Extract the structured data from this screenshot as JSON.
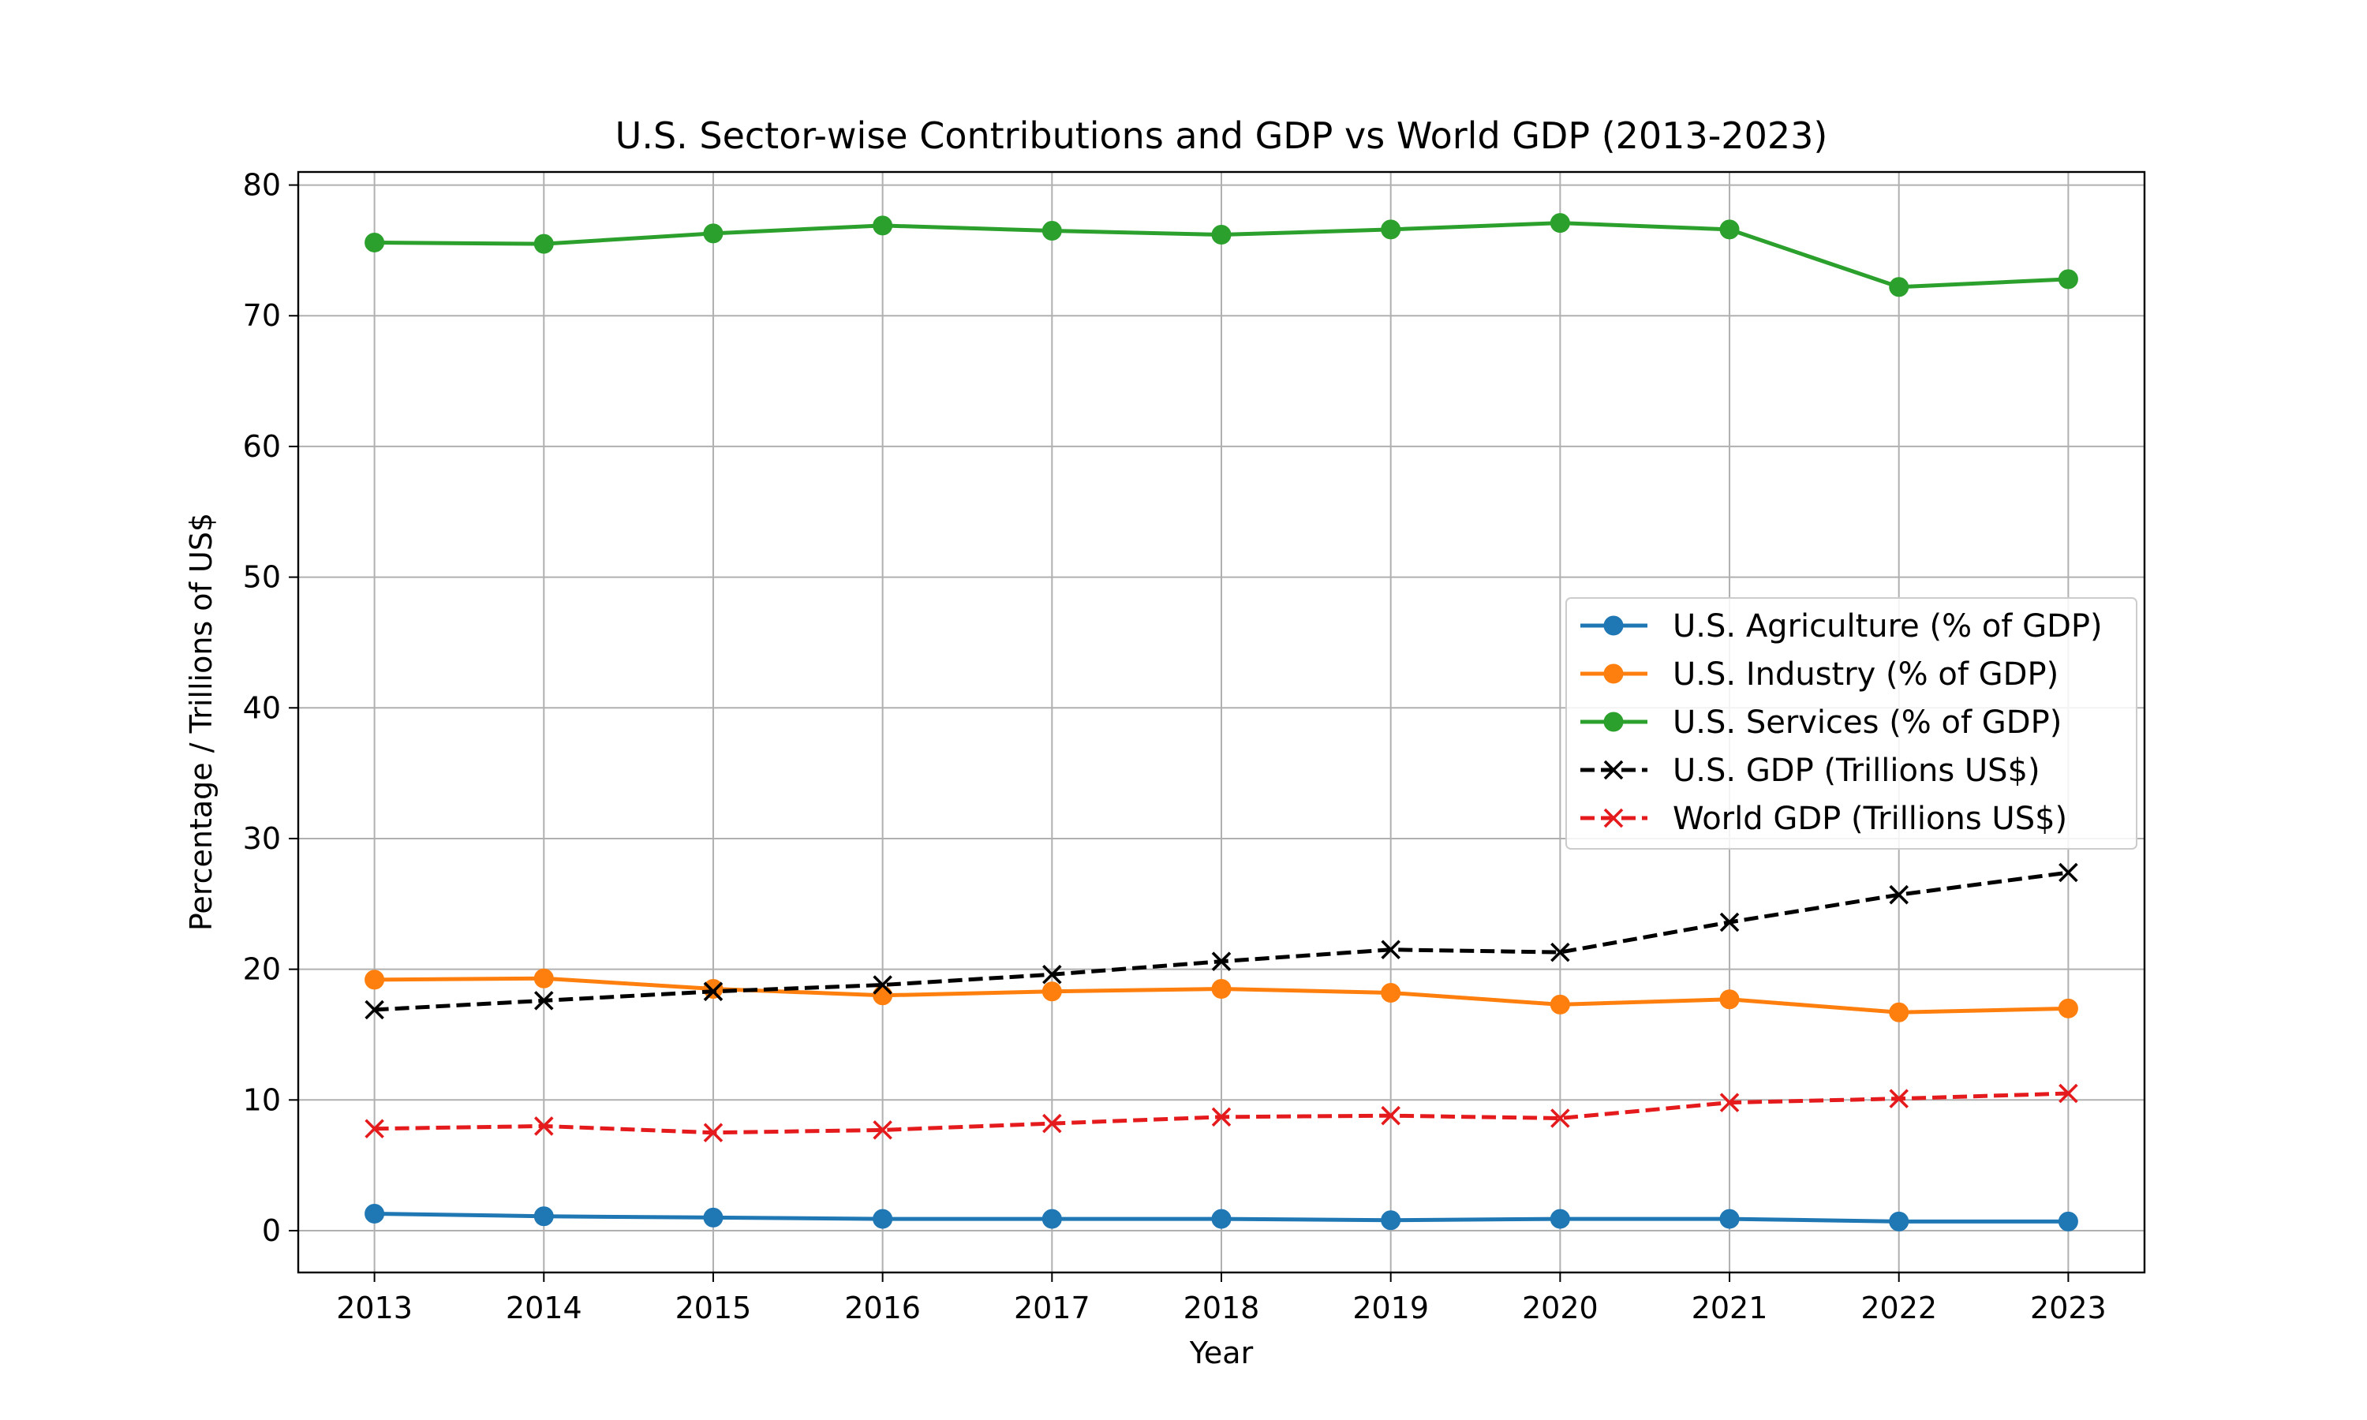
{
  "chart_data": {
    "type": "line",
    "title": "U.S. Sector-wise Contributions and GDP vs World GDP (2013-2023)",
    "xlabel": "Year",
    "ylabel": "Percentage / Trillions of US$",
    "x": [
      2013,
      2014,
      2015,
      2016,
      2017,
      2018,
      2019,
      2020,
      2021,
      2022,
      2023
    ],
    "ylim": [
      -3.2,
      81
    ],
    "yticks": [
      0,
      10,
      20,
      30,
      40,
      50,
      60,
      70,
      80
    ],
    "grid": true,
    "legend_position": "center-right",
    "series": [
      {
        "name": "U.S. Agriculture (% of GDP)",
        "color": "#1f77b4",
        "marker": "circle",
        "linestyle": "solid",
        "values": [
          1.3,
          1.1,
          1.0,
          0.9,
          0.9,
          0.9,
          0.8,
          0.9,
          0.9,
          0.7,
          0.7
        ]
      },
      {
        "name": "U.S. Industry (% of GDP)",
        "color": "#ff7f0e",
        "marker": "circle",
        "linestyle": "solid",
        "values": [
          19.2,
          19.3,
          18.5,
          18.0,
          18.3,
          18.5,
          18.2,
          17.3,
          17.7,
          16.7,
          17.0
        ]
      },
      {
        "name": "U.S. Services (% of GDP)",
        "color": "#2ca02c",
        "marker": "circle",
        "linestyle": "solid",
        "values": [
          75.6,
          75.5,
          76.3,
          76.9,
          76.5,
          76.2,
          76.6,
          77.1,
          76.6,
          72.2,
          72.8
        ]
      },
      {
        "name": "U.S. GDP (Trillions US$)",
        "color": "#000000",
        "marker": "x",
        "linestyle": "dashed",
        "values": [
          16.9,
          17.6,
          18.3,
          18.8,
          19.6,
          20.6,
          21.5,
          21.3,
          23.6,
          25.7,
          27.4
        ]
      },
      {
        "name": "World GDP (Trillions US$)",
        "color": "#e41a1c",
        "marker": "x",
        "linestyle": "dashed",
        "values": [
          7.8,
          8.0,
          7.5,
          7.7,
          8.2,
          8.7,
          8.8,
          8.6,
          9.8,
          10.1,
          10.5
        ]
      }
    ]
  }
}
